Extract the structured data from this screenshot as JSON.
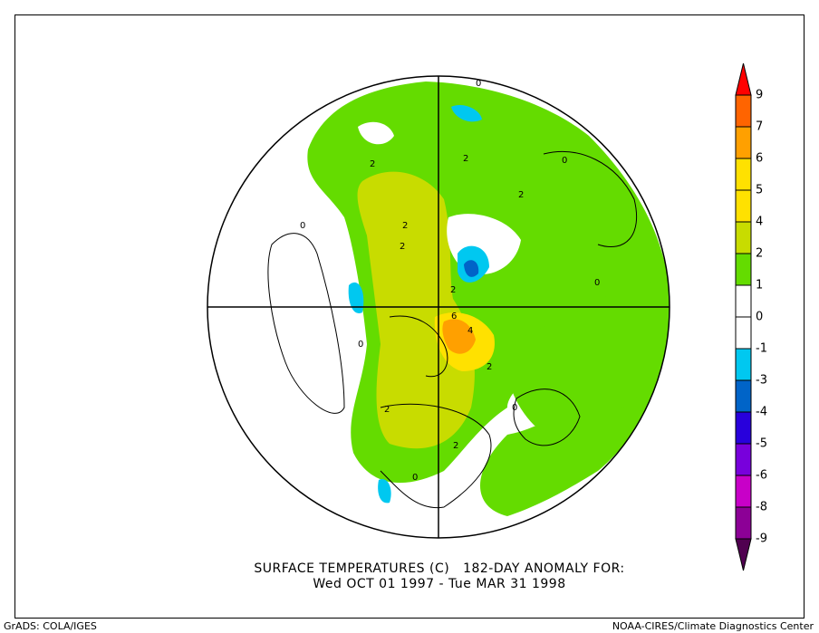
{
  "title": {
    "line1": "SURFACE TEMPERATURES (C)   182-DAY ANOMALY FOR:",
    "line2": "Wed OCT 01 1997 - Tue MAR 31 1998"
  },
  "footer": {
    "left": "GrADS: COLA/IGES",
    "right": "NOAA-CIRES/Climate Diagnostics Center"
  },
  "colorbar": {
    "labels": [
      "9",
      "7",
      "6",
      "5",
      "4",
      "2",
      "1",
      "0",
      "-1",
      "-3",
      "-4",
      "-5",
      "-6",
      "-8",
      "-9"
    ],
    "top_arrow_color": "#ff0000",
    "bottom_arrow_color": "#500050",
    "box_colors": [
      "#ff6400",
      "#ffa000",
      "#ffe100",
      "#ffe100",
      "#c8dc00",
      "#64dc00",
      "#ffffff",
      "#ffffff",
      "#00c8f0",
      "#0064c8",
      "#2800dc",
      "#7800dc",
      "#c800c8",
      "#8c0096"
    ]
  },
  "map": {
    "contour_labels": [
      "2",
      "2",
      "2",
      "2",
      "2",
      "2",
      "6",
      "4",
      "2",
      "2",
      "2",
      "0",
      "0",
      "0",
      "0",
      "0",
      "0",
      "0"
    ],
    "colors": {
      "green": "#64dc00",
      "yellowgreen": "#c8dc00",
      "yellow": "#ffe100",
      "orange": "#ffa000",
      "cyan": "#00c8f0",
      "blue": "#0064c8"
    }
  }
}
